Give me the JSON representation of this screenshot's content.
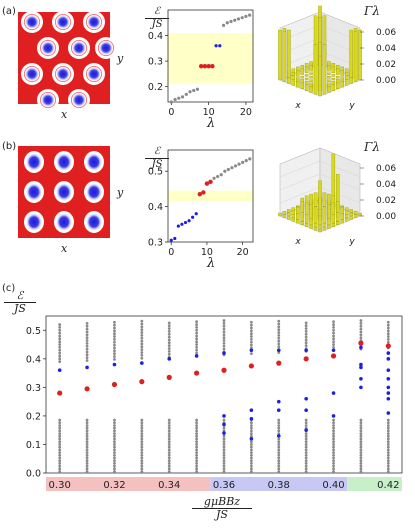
{
  "panel_a": {
    "label": "(a)",
    "map_xlabel": "x",
    "map_ylabel": "y",
    "spec_ylabel_num": "ℰ",
    "spec_ylabel_den": "JS",
    "spec_xlabel": "λ",
    "gamma_label": "Γλ",
    "bars_x": "x",
    "bars_y": "y"
  },
  "panel_b": {
    "label": "(b)",
    "map_xlabel": "x",
    "map_ylabel": "y",
    "spec_ylabel_num": "ℰ",
    "spec_ylabel_den": "JS",
    "spec_xlabel": "λ",
    "gamma_label": "Γλ",
    "bars_x": "x",
    "bars_y": "y"
  },
  "panel_c": {
    "label": "(c)",
    "ylabel_num": "ℰ",
    "ylabel_den": "JS",
    "xlabel_num": "gμBBz",
    "xlabel_den": "JS"
  },
  "colors": {
    "red": "#e02020",
    "blue": "#1f1fe0",
    "gray": "#8a8a8a",
    "band": "#ffffc8",
    "pink": "#f5c0c0",
    "lavender": "#c8c8f5",
    "green": "#c8f0c8",
    "bars": "#d8d820"
  },
  "chart_data": [
    {
      "type": "scatter",
      "panel": "(a)",
      "xlabel": "λ",
      "ylabel": "ℰ/JS",
      "xlim": [
        0,
        21
      ],
      "ylim": [
        0.14,
        0.5
      ],
      "xticks": [
        0,
        10,
        20
      ],
      "yticks": [
        0.2,
        0.3,
        0.4
      ],
      "highlight_band": [
        0.21,
        0.41
      ],
      "series": [
        {
          "color": "gray",
          "x": [
            0,
            1,
            2,
            3,
            4,
            5,
            6,
            7
          ],
          "y": [
            0.14,
            0.15,
            0.155,
            0.16,
            0.17,
            0.18,
            0.185,
            0.19
          ]
        },
        {
          "color": "red",
          "x": [
            8,
            9,
            10,
            11
          ],
          "y": [
            0.28,
            0.28,
            0.28,
            0.28
          ]
        },
        {
          "color": "blue",
          "x": [
            12,
            13
          ],
          "y": [
            0.36,
            0.36
          ]
        },
        {
          "color": "gray",
          "x": [
            14,
            15,
            16,
            17,
            18,
            19,
            20,
            21
          ],
          "y": [
            0.44,
            0.45,
            0.455,
            0.46,
            0.465,
            0.47,
            0.475,
            0.48
          ]
        }
      ]
    },
    {
      "type": "bar",
      "panel": "(a)",
      "ylabel": "Γλ",
      "zlim": [
        0,
        0.06
      ],
      "zticks": [
        "0.00",
        "0.02",
        "0.04",
        "0.06"
      ]
    },
    {
      "type": "scatter",
      "panel": "(b)",
      "xlabel": "λ",
      "ylabel": "ℰ/JS",
      "xlim": [
        0,
        22
      ],
      "ylim": [
        0.3,
        0.56
      ],
      "xticks": [
        0,
        10,
        20
      ],
      "yticks": [
        0.3,
        0.4,
        0.5
      ],
      "highlight_band": [
        0.415,
        0.445
      ],
      "series": [
        {
          "color": "blue",
          "x": [
            0,
            1,
            2,
            3,
            4,
            5,
            6,
            7
          ],
          "y": [
            0.305,
            0.31,
            0.345,
            0.35,
            0.355,
            0.36,
            0.37,
            0.38
          ]
        },
        {
          "color": "red",
          "x": [
            8,
            9,
            10,
            11
          ],
          "y": [
            0.435,
            0.44,
            0.465,
            0.47
          ]
        },
        {
          "color": "gray",
          "x": [
            12,
            13,
            14,
            15,
            16,
            17,
            18,
            19,
            20,
            21,
            22
          ],
          "y": [
            0.48,
            0.485,
            0.49,
            0.5,
            0.505,
            0.51,
            0.515,
            0.52,
            0.525,
            0.53,
            0.535
          ]
        }
      ]
    },
    {
      "type": "bar",
      "panel": "(b)",
      "ylabel": "Γλ",
      "zlim": [
        0,
        0.06
      ],
      "zticks": [
        "0.00",
        "0.02",
        "0.04",
        "0.06"
      ]
    },
    {
      "type": "scatter",
      "panel": "(c)",
      "xlabel": "gμBBz/JS",
      "ylabel": "ℰ/JS",
      "ylim": [
        0,
        0.55
      ],
      "yticks": [
        "0.0",
        "0.1",
        "0.2",
        "0.3",
        "0.4",
        "0.5"
      ],
      "categories": [
        "0.30",
        "0.31",
        "0.32",
        "0.33",
        "0.34",
        "0.35",
        "0.36",
        "0.37",
        "0.38",
        "0.39",
        "0.40",
        "0.41",
        "0.42"
      ],
      "category_labels": [
        "0.30",
        "0.32",
        "0.34",
        "0.36",
        "0.38",
        "0.40",
        "0.42"
      ],
      "regions": [
        {
          "color": "pink",
          "from": "0.30",
          "to": "0.35"
        },
        {
          "color": "lavender",
          "from": "0.36",
          "to": "0.40"
        },
        {
          "color": "green",
          "from": "0.41",
          "to": "0.42"
        }
      ],
      "red_points": [
        0.28,
        0.295,
        0.31,
        0.32,
        0.335,
        0.35,
        0.36,
        0.375,
        0.385,
        0.4,
        0.41,
        0.455,
        0.445
      ],
      "blue_points": [
        [
          0.36
        ],
        [
          0.37
        ],
        [
          0.38
        ],
        [
          0.385
        ],
        [
          0.4
        ],
        [
          0.41
        ],
        [
          0.14,
          0.17,
          0.2,
          0.42
        ],
        [
          0.12,
          0.19,
          0.22,
          0.43
        ],
        [
          0.13,
          0.22,
          0.25,
          0.43
        ],
        [
          0.15,
          0.22,
          0.26,
          0.43
        ],
        [
          0.2,
          0.28,
          0.43
        ],
        [
          0.3,
          0.33,
          0.37,
          0.38,
          0.44
        ],
        [
          0.21,
          0.26,
          0.28,
          0.3,
          0.33,
          0.36,
          0.4,
          0.42
        ]
      ]
    }
  ]
}
